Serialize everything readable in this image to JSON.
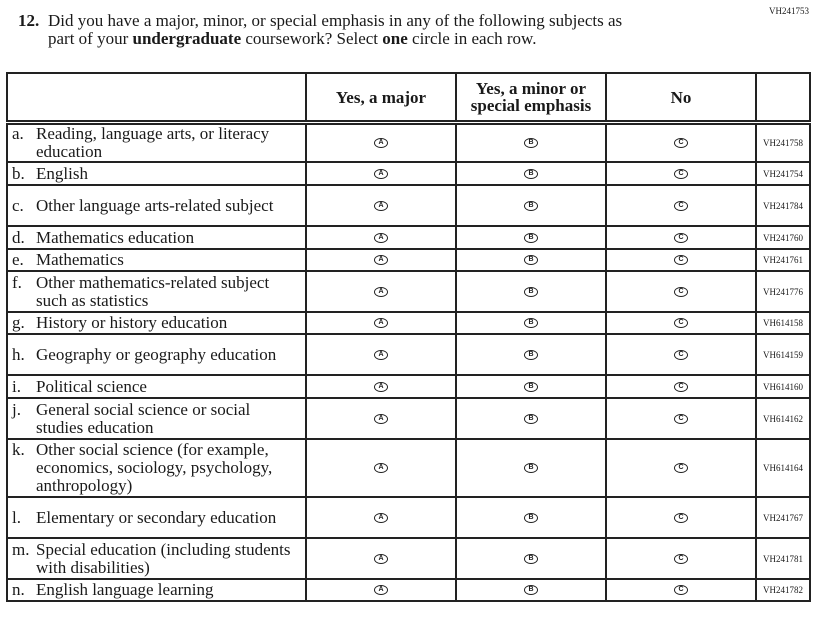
{
  "top_code": "VH241753",
  "question": {
    "number": "12.",
    "line1": "Did you have a major, minor, or special emphasis in any of the following subjects as",
    "line2_pre": "part of your ",
    "line2_bold": "undergraduate",
    "line2_mid": " coursework? Select ",
    "line2_bold2": "one",
    "line2_post": " circle in each row."
  },
  "columns": [
    "Yes, a major",
    "Yes, a minor or special emphasis",
    "No"
  ],
  "bubbles": [
    "A",
    "B",
    "C"
  ],
  "rows": [
    {
      "letter": "a.",
      "label": "Reading, language arts, or literacy education",
      "code": "VH241758"
    },
    {
      "letter": "b.",
      "label": "English",
      "code": "VH241754"
    },
    {
      "letter": "c.",
      "label": "Other language arts-related subject",
      "code": "VH241784"
    },
    {
      "letter": "d.",
      "label": "Mathematics education",
      "code": "VH241760"
    },
    {
      "letter": "e.",
      "label": "Mathematics",
      "code": "VH241761"
    },
    {
      "letter": "f.",
      "label": "Other mathematics-related subject such as statistics",
      "code": "VH241776"
    },
    {
      "letter": "g.",
      "label": "History or history education",
      "code": "VH614158"
    },
    {
      "letter": "h.",
      "label": "Geography or geography education",
      "code": "VH614159"
    },
    {
      "letter": "i.",
      "label": "Political science",
      "code": "VH614160"
    },
    {
      "letter": "j.",
      "label": "General social science or social studies education",
      "code": "VH614162"
    },
    {
      "letter": "k.",
      "label": "Other social science (for example, economics, sociology, psychology, anthropology)",
      "code": "VH614164"
    },
    {
      "letter": "l.",
      "label": "Elementary or secondary education",
      "code": "VH241767"
    },
    {
      "letter": "m.",
      "label": "Special education (including students with disabilities)",
      "code": "VH241781"
    },
    {
      "letter": "n.",
      "label": "English language learning",
      "code": "VH241782"
    }
  ]
}
